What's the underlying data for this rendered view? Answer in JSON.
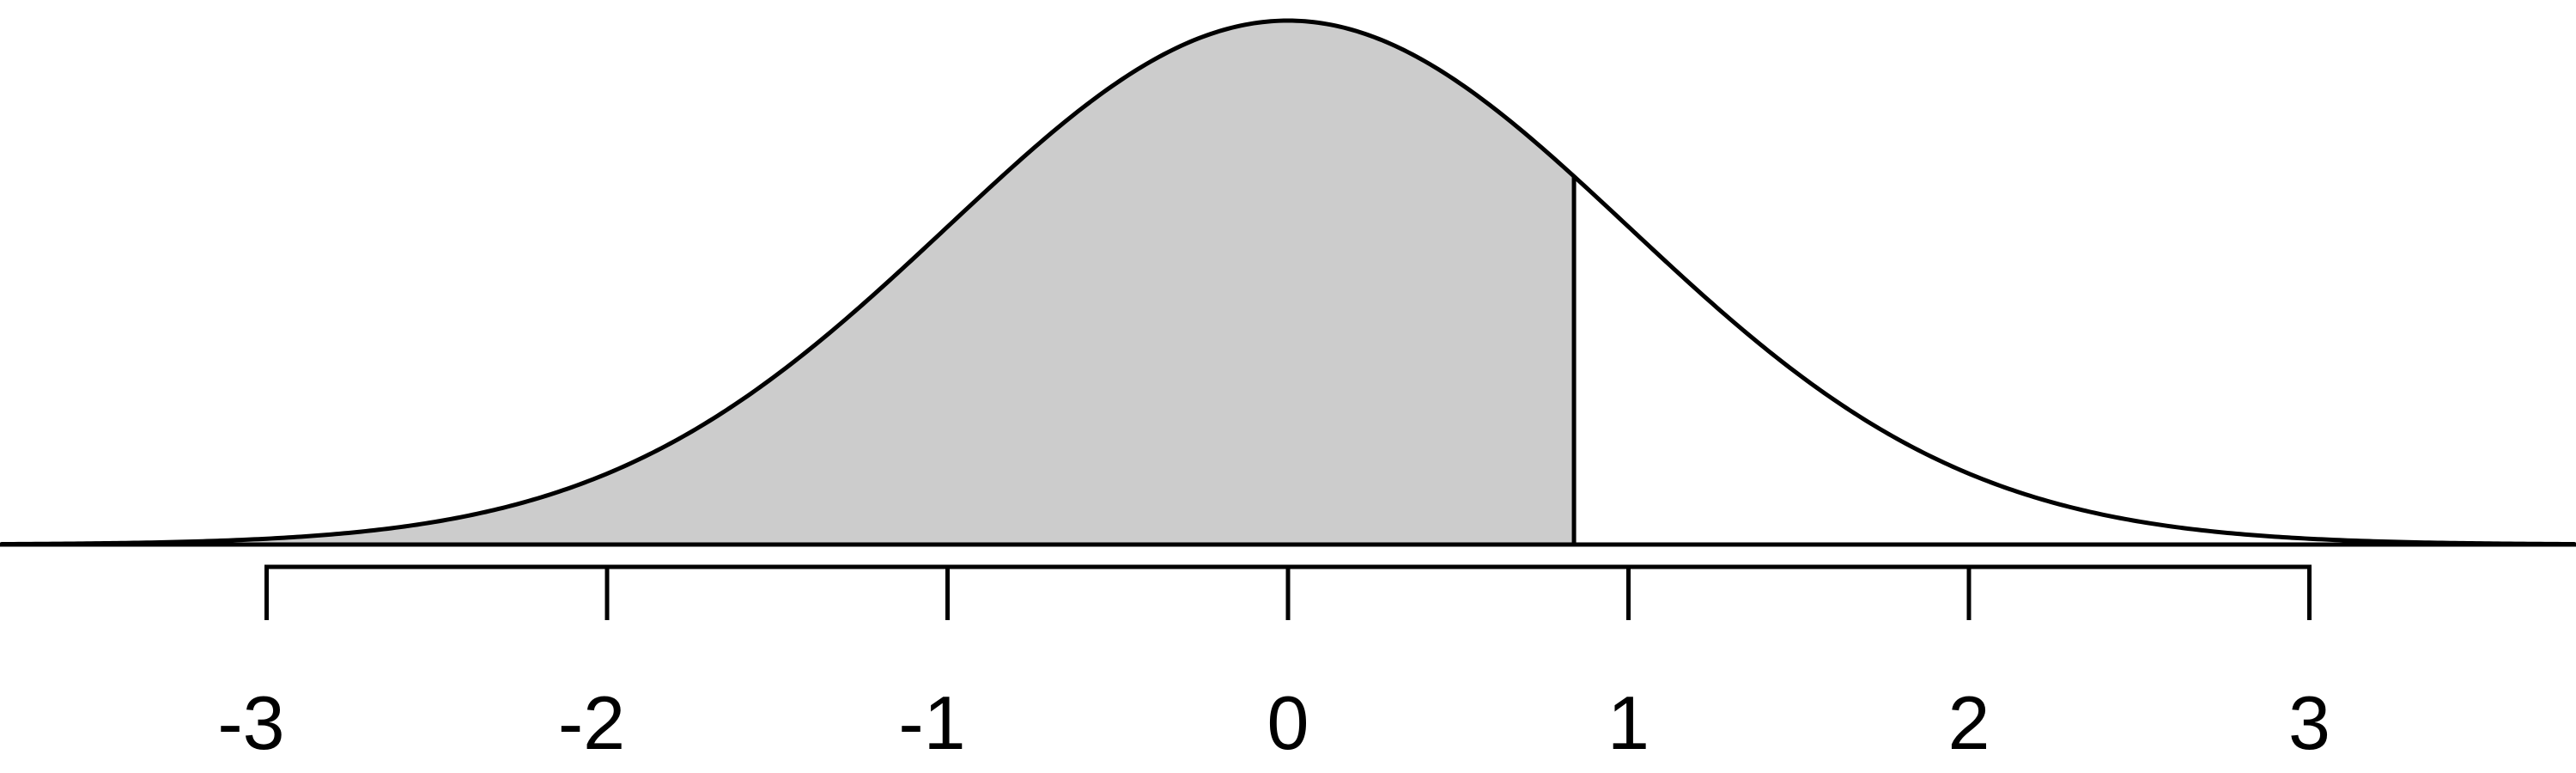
{
  "chart_data": {
    "type": "area",
    "title": "",
    "xlabel": "",
    "ylabel": "",
    "distribution": "standard normal",
    "mean": 0,
    "sd": 1,
    "xlim": [
      -3.78,
      3.78
    ],
    "x_ticks": [
      -3,
      -2,
      -1,
      0,
      1,
      2,
      3
    ],
    "x_tick_labels": [
      "-3",
      "-2",
      "-1",
      "0",
      "1",
      "2",
      "3"
    ],
    "shaded_region": {
      "from": -3.78,
      "to": 0.84
    },
    "cutoff_line_x": 0.84,
    "grid": false,
    "legend": "none",
    "colors": {
      "curve": "#000000",
      "shade": "#cccccc",
      "axis": "#000000",
      "background": "#ffffff"
    }
  }
}
